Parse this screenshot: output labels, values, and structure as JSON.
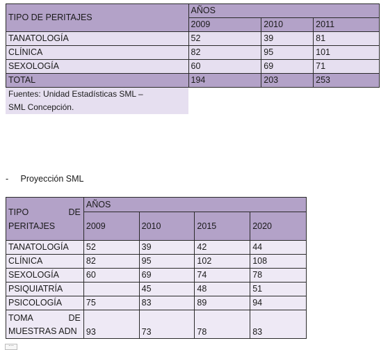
{
  "table1": {
    "header_label": "TIPO DE PERITAJES",
    "years_label": "AÑOS",
    "years": [
      "2009",
      "2010",
      "2011"
    ],
    "rows": [
      {
        "label": "TANATOLOGÍA",
        "values": [
          "52",
          "39",
          "81"
        ]
      },
      {
        "label": "CLÍNICA",
        "values": [
          "82",
          "95",
          "101"
        ]
      },
      {
        "label": "SEXOLOGÍA",
        "values": [
          "60",
          "69",
          "71"
        ]
      },
      {
        "label": "TOTAL",
        "values": [
          "194",
          "203",
          "253"
        ]
      }
    ],
    "source_line1": "Fuentes: Unidad Estadísticas SML –",
    "source_line2": "SML Concepción."
  },
  "bullet": {
    "dash": "-",
    "text": "Proyección SML"
  },
  "table2": {
    "header_word1": "TIPO",
    "header_word2": "DE",
    "header_word3": "PERITAJES",
    "years_label": "AÑOS",
    "years": [
      "2009",
      "2010",
      "2015",
      "2020"
    ],
    "rows": [
      {
        "label": "TANATOLOGÍA",
        "values": [
          "52",
          "39",
          "42",
          "44"
        ]
      },
      {
        "label": "CLÍNICA",
        "values": [
          "82",
          "95",
          "102",
          "108"
        ]
      },
      {
        "label": "SEXOLOGÍA",
        "values": [
          "60",
          "69",
          "74",
          "78"
        ]
      },
      {
        "label": "PSIQUIATRÍA",
        "values": [
          "",
          "45",
          "48",
          "51"
        ]
      },
      {
        "label": "PSICOLOGÍA",
        "values": [
          "75",
          "83",
          "89",
          "94"
        ]
      }
    ],
    "last_row": {
      "label_word1": "TOMA",
      "label_word2": "DE",
      "label_line2": "MUESTRAS ADN",
      "values": [
        "93",
        "73",
        "78",
        "83"
      ]
    }
  },
  "handle_glyph": "⋯"
}
